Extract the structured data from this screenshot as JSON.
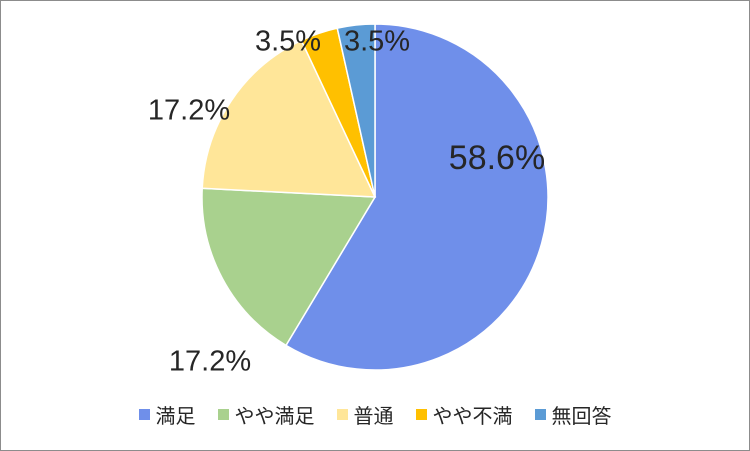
{
  "chart_data": {
    "type": "pie",
    "categories": [
      "満足",
      "やや満足",
      "普通",
      "やや不満",
      "無回答"
    ],
    "values": [
      58.6,
      17.2,
      17.2,
      3.5,
      3.5
    ],
    "labels": [
      "58.6%",
      "17.2%",
      "17.2%",
      "3.5%",
      "3.5%"
    ],
    "colors": [
      "#6f8fea",
      "#a9d18e",
      "#ffe699",
      "#ffc000",
      "#5b9bd5"
    ],
    "start": "12 o'clock",
    "direction": "clockwise",
    "legend_position": "bottom"
  }
}
